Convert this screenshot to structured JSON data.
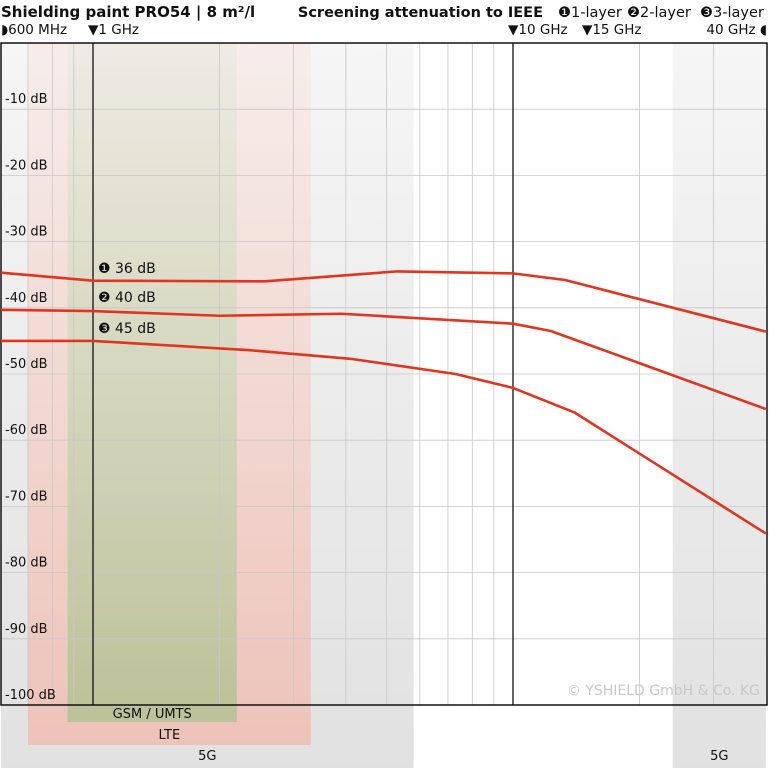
{
  "chart_data": {
    "type": "line",
    "title": "Shielding paint PRO54 | 8 m²/l",
    "subtitle": "Screening attenuation to IEEE",
    "x_scale": "log",
    "xlim_ghz": [
      0.6,
      40
    ],
    "ylim_db": [
      -100,
      0
    ],
    "grid": true,
    "x_tick_labels": [
      {
        "label": "600 MHz",
        "ghz": 0.6,
        "marker": "◗"
      },
      {
        "label": "1 GHz",
        "ghz": 1,
        "marker": "▼"
      },
      {
        "label": "10 GHz",
        "ghz": 10,
        "marker": "▼"
      },
      {
        "label": "15 GHz",
        "ghz": 15,
        "marker": "▼"
      },
      {
        "label": "40 GHz",
        "ghz": 40,
        "marker": "◖"
      }
    ],
    "y_ticks": [
      {
        "v": -10,
        "label": "-10 dB"
      },
      {
        "v": -20,
        "label": "-20 dB"
      },
      {
        "v": -30,
        "label": "-30 dB"
      },
      {
        "v": -40,
        "label": "-40 dB"
      },
      {
        "v": -50,
        "label": "-50 dB"
      },
      {
        "v": -60,
        "label": "-60 dB"
      },
      {
        "v": -70,
        "label": "-70 dB"
      },
      {
        "v": -80,
        "label": "-80 dB"
      },
      {
        "v": -90,
        "label": "-90 dB"
      },
      {
        "v": -100,
        "label": "-100 dB"
      }
    ],
    "legend": [
      {
        "marker": "❶",
        "label": "1-layer"
      },
      {
        "marker": "❷",
        "label": "2-layer"
      },
      {
        "marker": "❸",
        "label": "3-layer"
      }
    ],
    "series_color": "#e0351f",
    "series": [
      {
        "name": "1-layer",
        "annotation": "❶ 36 dB",
        "x": [
          0.6,
          1,
          2.57,
          5.3,
          10,
          13.3,
          40
        ],
        "y": [
          -34.7,
          -35.9,
          -36,
          -34.5,
          -34.8,
          -35.8,
          -43.6
        ]
      },
      {
        "name": "2-layer",
        "annotation": "❷ 40 dB",
        "x": [
          0.6,
          1,
          2,
          3.9,
          10,
          12.3,
          40
        ],
        "y": [
          -40.3,
          -40.5,
          -41.2,
          -40.9,
          -42.4,
          -43.5,
          -55.3
        ]
      },
      {
        "name": "3-layer",
        "annotation": "❸ 45 dB",
        "x": [
          0.6,
          1,
          2.36,
          4.1,
          7.3,
          10,
          14,
          40
        ],
        "y": [
          -45,
          -45,
          -46.4,
          -47.7,
          -50,
          -52.1,
          -55.8,
          -74.1
        ]
      }
    ],
    "bands": [
      {
        "label": "5G",
        "from_ghz": 0.6,
        "to_ghz": 5.8,
        "color": "#d9d9d9"
      },
      {
        "label": "5G",
        "from_ghz": 24,
        "to_ghz": 40,
        "color": "#d9d9d9"
      },
      {
        "label": "LTE",
        "from_ghz": 0.7,
        "to_ghz": 3.3,
        "color": "#f0b4a8"
      },
      {
        "label": "GSM / UMTS",
        "from_ghz": 0.87,
        "to_ghz": 2.2,
        "color": "#a8b88a"
      }
    ],
    "watermark": "© YSHIELD GmbH & Co. KG"
  }
}
